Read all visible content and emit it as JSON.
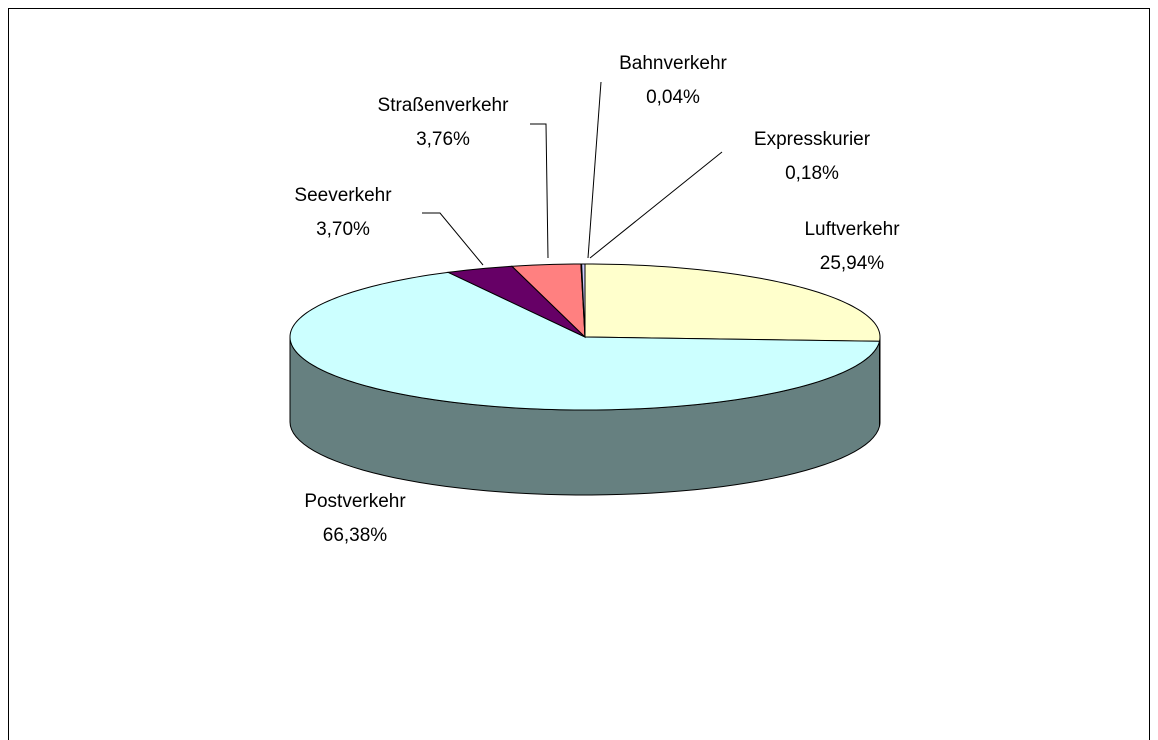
{
  "chart_data": {
    "type": "pie",
    "three_d": true,
    "categories": [
      "Luftverkehr",
      "Postverkehr",
      "Seeverkehr",
      "Straßenverkehr",
      "Bahnverkehr",
      "Expresskurier"
    ],
    "values": [
      25.94,
      66.38,
      3.7,
      3.76,
      0.04,
      0.18
    ],
    "value_labels": [
      "25,94%",
      "66,38%",
      "3,70%",
      "3,76%",
      "0,04%",
      "0,18%"
    ],
    "colors": [
      "#ffffcc",
      "#ccffff",
      "#660066",
      "#ff8080",
      "#0066cc",
      "#ccccff"
    ]
  }
}
